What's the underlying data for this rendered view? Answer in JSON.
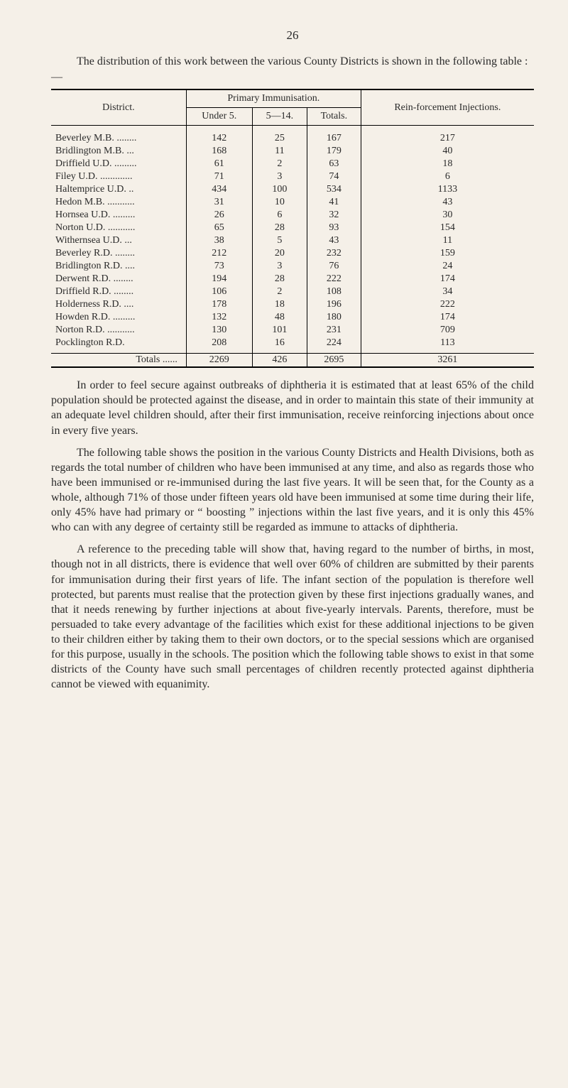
{
  "page_number": "26",
  "intro_text": "The distribution of this work between the various County Districts is shown in the following table : —",
  "table": {
    "header": {
      "district": "District.",
      "primary": "Primary Immunisation.",
      "under5": "Under 5.",
      "age514": "5—14.",
      "totals": "Totals.",
      "rein": "Rein-forcement Injections."
    },
    "rows": [
      {
        "label": "Beverley M.B. ........",
        "u5": "142",
        "a514": "25",
        "tot": "167",
        "rein": "217"
      },
      {
        "label": "Bridlington M.B. ...",
        "u5": "168",
        "a514": "11",
        "tot": "179",
        "rein": "40"
      },
      {
        "label": "Driffield U.D. .........",
        "u5": "61",
        "a514": "2",
        "tot": "63",
        "rein": "18"
      },
      {
        "label": "Filey U.D. .............",
        "u5": "71",
        "a514": "3",
        "tot": "74",
        "rein": "6"
      },
      {
        "label": "Haltemprice U.D. ..",
        "u5": "434",
        "a514": "100",
        "tot": "534",
        "rein": "1133"
      },
      {
        "label": "Hedon M.B. ...........",
        "u5": "31",
        "a514": "10",
        "tot": "41",
        "rein": "43"
      },
      {
        "label": "Hornsea U.D. .........",
        "u5": "26",
        "a514": "6",
        "tot": "32",
        "rein": "30"
      },
      {
        "label": "Norton U.D. ...........",
        "u5": "65",
        "a514": "28",
        "tot": "93",
        "rein": "154"
      },
      {
        "label": "Withernsea U.D. ...",
        "u5": "38",
        "a514": "5",
        "tot": "43",
        "rein": "11"
      },
      {
        "label": "Beverley R.D. ........",
        "u5": "212",
        "a514": "20",
        "tot": "232",
        "rein": "159"
      },
      {
        "label": "Bridlington R.D. ....",
        "u5": "73",
        "a514": "3",
        "tot": "76",
        "rein": "24"
      },
      {
        "label": "Derwent R.D. ........",
        "u5": "194",
        "a514": "28",
        "tot": "222",
        "rein": "174"
      },
      {
        "label": "Driffield R.D. ........",
        "u5": "106",
        "a514": "2",
        "tot": "108",
        "rein": "34"
      },
      {
        "label": "Holderness R.D. ....",
        "u5": "178",
        "a514": "18",
        "tot": "196",
        "rein": "222"
      },
      {
        "label": "Howden R.D. .........",
        "u5": "132",
        "a514": "48",
        "tot": "180",
        "rein": "174"
      },
      {
        "label": "Norton R.D. ...........",
        "u5": "130",
        "a514": "101",
        "tot": "231",
        "rein": "709"
      },
      {
        "label": "Pocklington R.D.",
        "u5": "208",
        "a514": "16",
        "tot": "224",
        "rein": "113"
      }
    ],
    "totals_row": {
      "label": "Totals ......",
      "u5": "2269",
      "a514": "426",
      "tot": "2695",
      "rein": "3261"
    }
  },
  "para1": "In order to feel secure against outbreaks of diphtheria it is estimated that at least 65% of the child population should be protected against the disease, and in order to maintain this state of their immunity at an adequate level children should, after their first immunisation, receive reinforcing injections about once in every five years.",
  "para2": "The following table shows the position in the various County Districts and Health Divisions, both as regards the total number of children who have been immunised at any time, and also as regards those who have been immunised or re-immunised during the last five years. It will be seen that, for the County as a whole, although 71% of those under fifteen years old have been immunised at some time during their life, only 45% have had primary or “ boosting ” injections within the last five years, and it is only this 45% who can with any degree of certainty still be regarded as immune to attacks of diphtheria.",
  "para3": "A reference to the preceding table will show that, having regard to the number of births, in most, though not in all districts, there is evidence that well over 60% of children are submitted by their parents for immunisation during their first years of life. The infant section of the population is therefore well protected, but parents must realise that the protection given by these first injections gradually wanes, and that it needs renewing by further injections at about five-yearly intervals. Parents, therefore, must be persuaded to take every advantage of the facilities which exist for these additional injections to be given to their children either by taking them to their own doctors, or to the special sessions which are organised for this purpose, usually in the schools. The position which the following table shows to exist in that some districts of the County have such small percentages of children recently protected against diphtheria cannot be viewed with equanimity."
}
